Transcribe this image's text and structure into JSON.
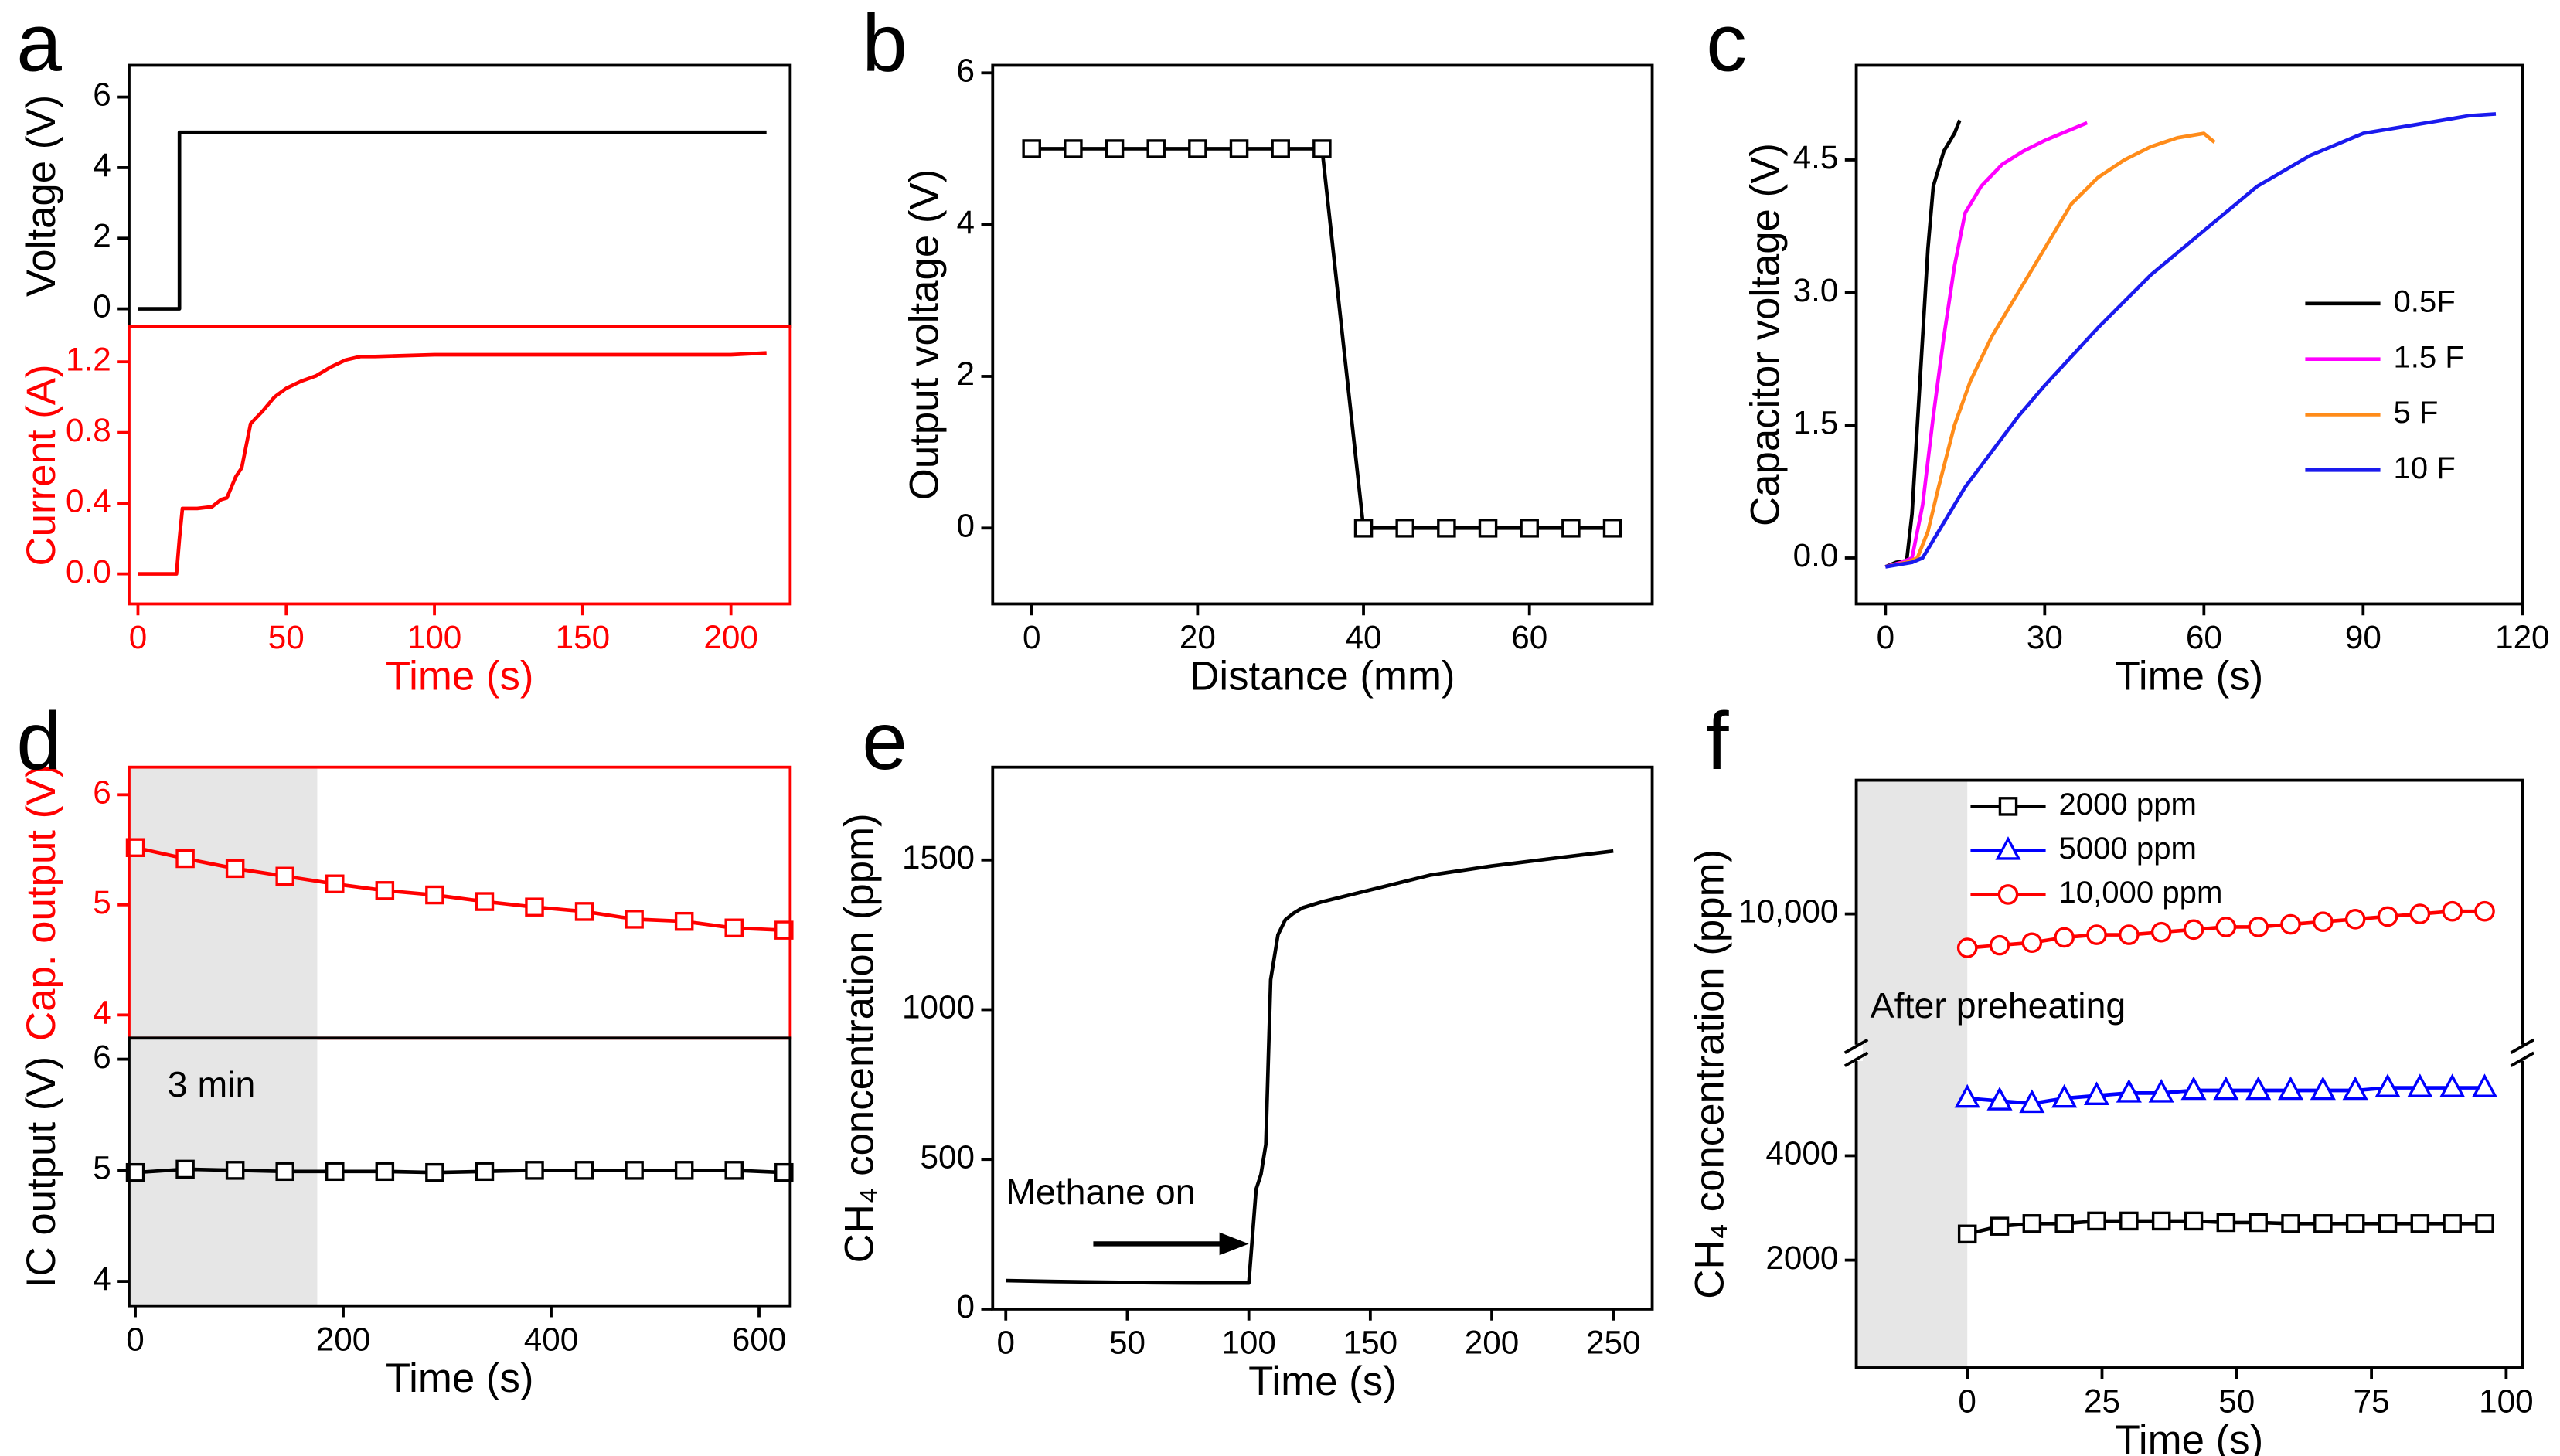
{
  "chart_data": [
    {
      "type": "line",
      "panel_label": "a",
      "ylabel": "Voltage (V)",
      "x": [
        0,
        14,
        14,
        212
      ],
      "values": [
        0,
        0,
        5,
        5
      ],
      "color": "#000000",
      "xlim": [
        -3,
        220
      ],
      "ylim": [
        -0.5,
        6.9
      ],
      "yticks": [
        0,
        2,
        4,
        6
      ]
    },
    {
      "type": "line",
      "ylabel": "Current (A)",
      "xlabel": "Time (s)",
      "x": [
        0,
        13,
        14,
        15,
        20,
        25,
        28,
        30,
        33,
        35,
        38,
        42,
        46,
        50,
        55,
        60,
        65,
        70,
        75,
        80,
        100,
        150,
        200,
        212
      ],
      "values": [
        0,
        0,
        0.2,
        0.37,
        0.37,
        0.38,
        0.42,
        0.43,
        0.55,
        0.6,
        0.85,
        0.92,
        1.0,
        1.05,
        1.09,
        1.12,
        1.17,
        1.21,
        1.23,
        1.23,
        1.24,
        1.24,
        1.24,
        1.25
      ],
      "color": "#ff0000",
      "axis_color": "#ff0000",
      "xlim": [
        -3,
        220
      ],
      "ylim": [
        -0.17,
        1.4
      ],
      "xticks": [
        0,
        50,
        100,
        150,
        200
      ],
      "yticks": [
        {
          "value": 0,
          "label": "0.0"
        },
        {
          "value": 0.4,
          "label": "0.4"
        },
        {
          "value": 0.8,
          "label": "0.8"
        },
        {
          "value": 1.2,
          "label": "1.2"
        }
      ]
    },
    {
      "type": "line",
      "panel_label": "b",
      "ylabel": "Output voltage (V)",
      "xlabel": "Distance (mm)",
      "x": [
        0,
        5,
        10,
        15,
        20,
        25,
        30,
        35,
        40,
        45,
        50,
        55,
        60,
        65,
        70
      ],
      "values": [
        5,
        5,
        5,
        5,
        5,
        5,
        5,
        5,
        0,
        0,
        0,
        0,
        0,
        0,
        0
      ],
      "color": "#000000",
      "marker": "square",
      "xlim": [
        -4.7,
        74.8
      ],
      "ylim": [
        -1,
        6.1
      ],
      "xticks": [
        0,
        20,
        40,
        60
      ],
      "yticks": [
        0,
        2,
        4,
        6
      ]
    },
    {
      "type": "line",
      "panel_label": "c",
      "ylabel": "Capacitor voltage (V)",
      "xlabel": "Time (s)",
      "xlim": [
        -5.5,
        120
      ],
      "ylim": [
        -0.52,
        5.57
      ],
      "xticks": [
        0,
        30,
        60,
        90,
        120
      ],
      "yticks": [
        {
          "value": 0,
          "label": "0.0"
        },
        {
          "value": 1.5,
          "label": "1.5"
        },
        {
          "value": 3,
          "label": "3.0"
        },
        {
          "value": 4.5,
          "label": "4.5"
        }
      ],
      "legend": "right",
      "series": [
        {
          "name": "0.5F",
          "color": "#000000",
          "x": [
            0,
            2,
            4,
            5,
            6,
            7,
            8,
            9,
            10,
            11,
            12,
            13,
            14
          ],
          "values": [
            -0.1,
            -0.05,
            -0.03,
            0.5,
            1.5,
            2.5,
            3.5,
            4.2,
            4.4,
            4.6,
            4.7,
            4.8,
            4.95
          ]
        },
        {
          "name": "1.5 F",
          "color": "#ff00ff",
          "x": [
            0,
            3,
            5,
            7,
            9,
            11,
            13,
            15,
            18,
            22,
            26,
            30,
            34,
            38
          ],
          "values": [
            -0.1,
            -0.05,
            0,
            0.6,
            1.6,
            2.5,
            3.3,
            3.9,
            4.2,
            4.45,
            4.6,
            4.72,
            4.82,
            4.92
          ]
        },
        {
          "name": "5 F",
          "color": "#ff8c1a",
          "x": [
            0,
            4,
            6,
            8,
            10,
            13,
            16,
            20,
            25,
            30,
            35,
            40,
            45,
            50,
            55,
            60,
            62
          ],
          "values": [
            -0.1,
            -0.05,
            0,
            0.3,
            0.8,
            1.5,
            2.0,
            2.5,
            3.0,
            3.5,
            4.0,
            4.3,
            4.5,
            4.65,
            4.75,
            4.8,
            4.7
          ]
        },
        {
          "name": "10 F",
          "color": "#1a1aee",
          "x": [
            0,
            5,
            7,
            9,
            12,
            15,
            20,
            25,
            30,
            40,
            50,
            60,
            70,
            80,
            90,
            100,
            110,
            115
          ],
          "values": [
            -0.1,
            -0.05,
            0,
            0.2,
            0.5,
            0.8,
            1.2,
            1.6,
            1.95,
            2.6,
            3.2,
            3.7,
            4.2,
            4.55,
            4.8,
            4.9,
            5.0,
            5.02
          ]
        }
      ]
    },
    {
      "type": "line",
      "panel_label": "d",
      "ylabel": "Cap. output (V)",
      "x": [
        0,
        48,
        96,
        144,
        192,
        240,
        288,
        336,
        384,
        432,
        480,
        528,
        576,
        624
      ],
      "values": [
        5.52,
        5.42,
        5.33,
        5.26,
        5.19,
        5.13,
        5.09,
        5.03,
        4.98,
        4.94,
        4.87,
        4.85,
        4.79,
        4.77
      ],
      "color": "#ff0000",
      "axis_color": "#ff0000",
      "marker": "square",
      "shade": [
        -6,
        175
      ],
      "xlim": [
        -6,
        630
      ],
      "ylim": [
        3.79,
        6.25
      ],
      "yticks": [
        4,
        5,
        6
      ]
    },
    {
      "type": "line",
      "ylabel": "IC output (V)",
      "xlabel": "Time (s)",
      "x": [
        0,
        48,
        96,
        144,
        192,
        240,
        288,
        336,
        384,
        432,
        480,
        528,
        576,
        624
      ],
      "values": [
        4.98,
        5.01,
        5.0,
        4.99,
        4.99,
        4.99,
        4.98,
        4.99,
        5.0,
        5.0,
        5.0,
        5.0,
        5.0,
        4.98
      ],
      "color": "#000000",
      "marker": "square",
      "shade": [
        -6,
        175
      ],
      "annotations": [
        {
          "text": "3 min",
          "x": 31,
          "y": 5.75
        }
      ],
      "xlim": [
        -6,
        630
      ],
      "ylim": [
        3.78,
        6.19
      ],
      "xticks": [
        0,
        200,
        400,
        600
      ],
      "yticks": [
        4,
        5,
        6
      ]
    },
    {
      "type": "line",
      "panel_label": "e",
      "ylabel": "CH₄ concentration (ppm)",
      "xlabel": "Time (s)",
      "x": [
        0,
        20,
        40,
        60,
        80,
        100,
        103,
        105,
        107,
        109,
        110,
        112,
        115,
        118,
        122,
        130,
        140,
        150,
        175,
        200,
        225,
        250
      ],
      "values": [
        95,
        92,
        90,
        88,
        87,
        87,
        400,
        450,
        550,
        1100,
        1150,
        1250,
        1300,
        1320,
        1340,
        1360,
        1380,
        1400,
        1450,
        1480,
        1505,
        1530
      ],
      "color": "#000000",
      "annotations": [
        {
          "text": "Methane on",
          "x": 0,
          "y": 382,
          "arrow": [
            36,
            218,
            100,
            218
          ]
        }
      ],
      "xlim": [
        -5.4,
        266
      ],
      "ylim": [
        0,
        1810
      ],
      "xticks": [
        0,
        50,
        100,
        150,
        200,
        250
      ],
      "yticks": [
        0,
        500,
        1000,
        1500
      ]
    },
    {
      "type": "line",
      "panel_label": "f",
      "ylabel": "CH₄ concentration (ppm)",
      "xlabel": "Time (s)",
      "x": [
        0,
        6,
        12,
        18,
        24,
        30,
        36,
        42,
        48,
        54,
        60,
        66,
        72,
        78,
        84,
        90,
        96
      ],
      "xlim": [
        -20.6,
        103
      ],
      "ylim": [
        -62,
        5970
      ],
      "ylim_upper": [
        7340,
        12560
      ],
      "xticks": [
        0,
        25,
        50,
        75,
        100
      ],
      "yticks": [
        2000,
        4000
      ],
      "yticks_upper": [
        {
          "value": 10000,
          "label": "10,000"
        }
      ],
      "shade": [
        -20.6,
        0
      ],
      "annotations": [
        {
          "text": "After preheating",
          "x": -18,
          "y": 8190
        }
      ],
      "legend": "upper left",
      "series": [
        {
          "name": "2000 ppm",
          "color": "#000000",
          "marker": "square",
          "values": [
            2500,
            2650,
            2700,
            2700,
            2750,
            2750,
            2750,
            2750,
            2720,
            2720,
            2700,
            2700,
            2700,
            2700,
            2700,
            2700,
            2700
          ]
        },
        {
          "name": "5000 ppm",
          "color": "#0000ff",
          "marker": "triangle",
          "values": [
            5100,
            5050,
            5000,
            5100,
            5150,
            5200,
            5200,
            5250,
            5250,
            5250,
            5250,
            5250,
            5250,
            5300,
            5300,
            5300,
            5300
          ]
        },
        {
          "name": "10,000 ppm",
          "color": "#ff0000",
          "marker": "circle",
          "values": [
            9350,
            9400,
            9450,
            9550,
            9600,
            9600,
            9650,
            9700,
            9750,
            9750,
            9800,
            9850,
            9900,
            9950,
            10000,
            10050,
            10050
          ]
        }
      ]
    }
  ]
}
